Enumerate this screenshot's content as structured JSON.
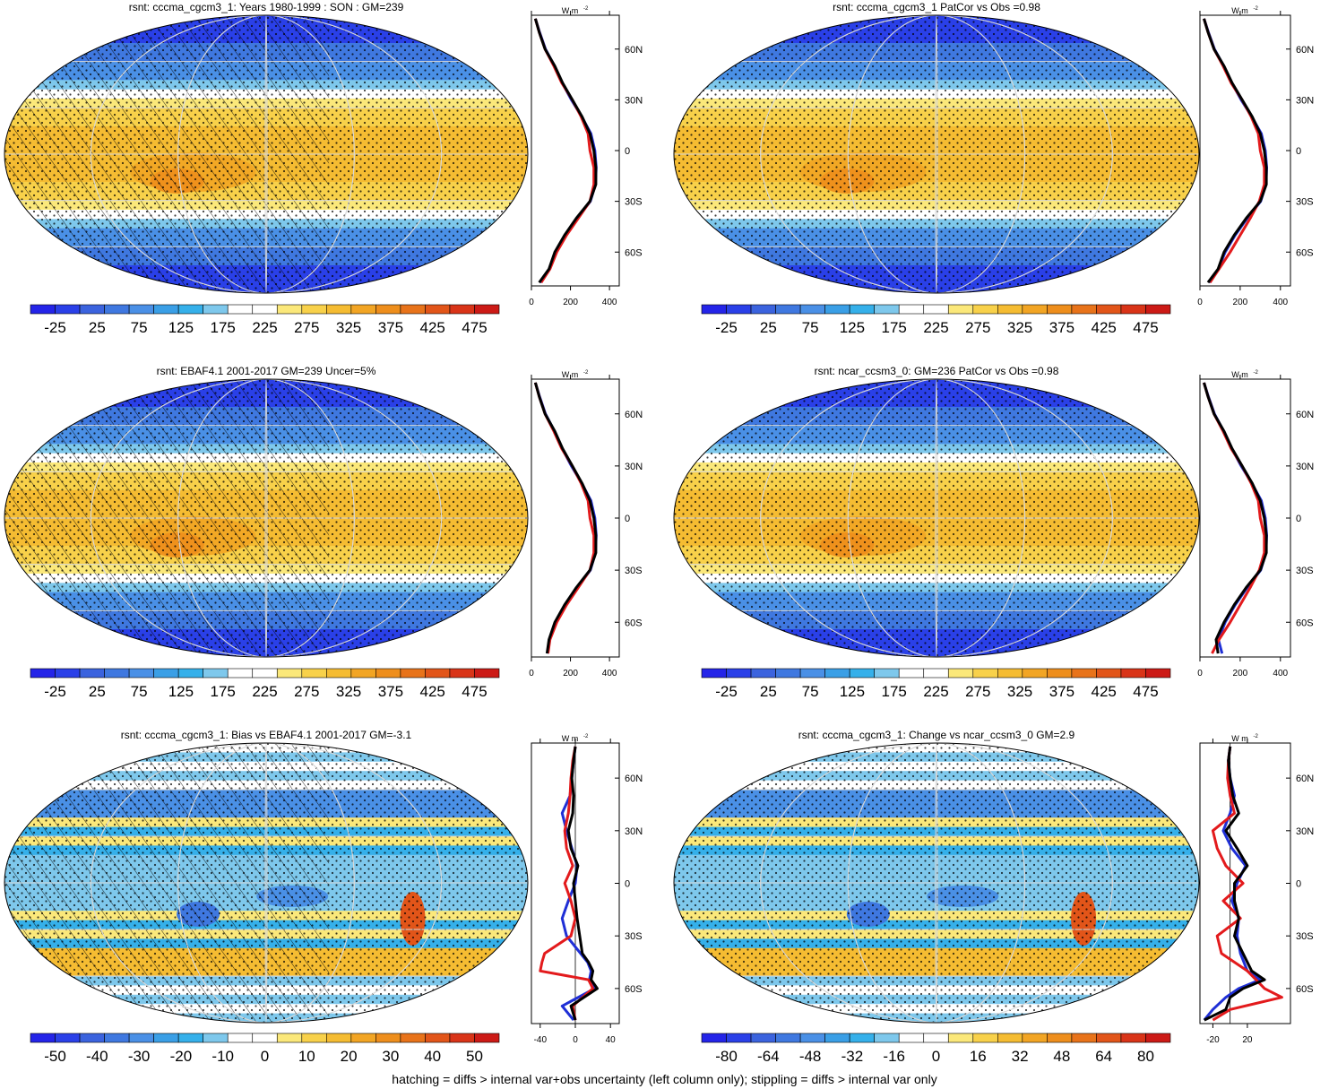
{
  "footer": "hatching = diffs > internal var+obs uncertainty (left column only); stippling = diffs > internal var only",
  "profile_unit": "W m",
  "profile_unit_sup": "-2",
  "lat_ticks": [
    "60N",
    "30N",
    "0",
    "30S",
    "60S"
  ],
  "colors": {
    "abs_scale": [
      "#2424e8",
      "#2a40e8",
      "#3b63de",
      "#3f78e0",
      "#4a90e6",
      "#3a9fe6",
      "#35b0ea",
      "#7ec8ec",
      "#ffffff",
      "#ffffff",
      "#fbe87a",
      "#f8d14a",
      "#f5bc32",
      "#f2a524",
      "#ee8e1c",
      "#e8731a",
      "#e25519",
      "#d93418",
      "#cc1a16"
    ],
    "diff_scale": [
      "#2424e8",
      "#2a40e8",
      "#3b63de",
      "#3f78e0",
      "#4a90e6",
      "#3a9fe6",
      "#35b0ea",
      "#7ec8ec",
      "#ffffff",
      "#ffffff",
      "#fbe87a",
      "#f8d14a",
      "#f5bc32",
      "#f2a524",
      "#ee8e1c",
      "#e8731a",
      "#e25519",
      "#d93418",
      "#cc1a16"
    ],
    "model_line": "#000000",
    "obs_line": "#e31a1c",
    "other_line": "#1f2fd6"
  },
  "chart_data": [
    {
      "type": "heatmap",
      "panel": "top-left",
      "title": "rsnt: cccma_cgcm3_1: Years 1980-1999 : SON : GM=239",
      "field": "abs",
      "hatching": true,
      "stippling": true,
      "colorbar_labels": [
        "-25",
        "25",
        "75",
        "125",
        "175",
        "225",
        "275",
        "325",
        "375",
        "425",
        "475"
      ],
      "profile": {
        "xticks": [
          "0",
          "200",
          "400"
        ],
        "xlim": [
          0,
          450
        ],
        "ylim": [
          -80,
          80
        ],
        "lat": [
          -78,
          -70,
          -60,
          -50,
          -40,
          -30,
          -20,
          -10,
          0,
          10,
          20,
          30,
          40,
          50,
          60,
          70,
          78
        ],
        "model": [
          40,
          90,
          120,
          170,
          230,
          300,
          330,
          330,
          320,
          300,
          260,
          210,
          160,
          120,
          70,
          40,
          20
        ],
        "obs": [
          50,
          95,
          130,
          180,
          240,
          300,
          320,
          320,
          300,
          290,
          255,
          210,
          155,
          115,
          70,
          40,
          20
        ],
        "other": [
          45,
          92,
          125,
          175,
          235,
          302,
          328,
          332,
          325,
          305,
          258,
          205,
          158,
          118,
          72,
          42,
          20
        ]
      }
    },
    {
      "type": "heatmap",
      "panel": "top-right",
      "title": "rsnt: cccma_cgcm3_1 PatCor vs Obs =0.98",
      "field": "abs",
      "hatching": false,
      "stippling": true,
      "colorbar_labels": [
        "-25",
        "25",
        "75",
        "125",
        "175",
        "225",
        "275",
        "325",
        "375",
        "425",
        "475"
      ],
      "profile": {
        "xticks": [
          "0",
          "200",
          "400"
        ],
        "xlim": [
          0,
          450
        ],
        "ylim": [
          -80,
          80
        ],
        "lat": [
          -78,
          -70,
          -60,
          -50,
          -40,
          -30,
          -20,
          -10,
          0,
          10,
          20,
          30,
          40,
          50,
          60,
          70,
          78
        ],
        "model": [
          40,
          90,
          120,
          170,
          230,
          300,
          330,
          330,
          320,
          300,
          260,
          210,
          160,
          120,
          70,
          40,
          20
        ],
        "obs": [
          50,
          95,
          150,
          200,
          250,
          295,
          320,
          320,
          300,
          290,
          255,
          210,
          155,
          115,
          70,
          40,
          20
        ],
        "other": [
          45,
          92,
          125,
          175,
          235,
          302,
          328,
          332,
          325,
          305,
          258,
          205,
          158,
          118,
          72,
          42,
          20
        ]
      }
    },
    {
      "type": "heatmap",
      "panel": "middle-left",
      "title": "rsnt: EBAF4.1 2001-2017 GM=239 Uncer=5%",
      "field": "abs",
      "hatching": true,
      "stippling": true,
      "colorbar_labels": [
        "-25",
        "25",
        "75",
        "125",
        "175",
        "225",
        "275",
        "325",
        "375",
        "425",
        "475"
      ],
      "profile": {
        "xticks": [
          "0",
          "200",
          "400"
        ],
        "xlim": [
          0,
          450
        ],
        "ylim": [
          -80,
          80
        ],
        "lat": [
          -78,
          -70,
          -60,
          -50,
          -40,
          -30,
          -20,
          -10,
          0,
          10,
          20,
          30,
          40,
          50,
          60,
          70,
          78
        ],
        "model": [
          80,
          90,
          120,
          170,
          230,
          300,
          330,
          330,
          320,
          300,
          260,
          210,
          160,
          120,
          70,
          40,
          20
        ],
        "obs": [
          85,
          95,
          130,
          180,
          240,
          300,
          320,
          320,
          300,
          290,
          255,
          210,
          155,
          115,
          70,
          40,
          20
        ],
        "other": [
          82,
          92,
          125,
          175,
          235,
          302,
          328,
          332,
          325,
          305,
          258,
          205,
          158,
          118,
          72,
          42,
          20
        ]
      }
    },
    {
      "type": "heatmap",
      "panel": "middle-right",
      "title": "rsnt: ncar_ccsm3_0: GM=236 PatCor vs Obs =0.98",
      "field": "abs",
      "hatching": false,
      "stippling": true,
      "colorbar_labels": [
        "-25",
        "25",
        "75",
        "125",
        "175",
        "225",
        "275",
        "325",
        "375",
        "425",
        "475"
      ],
      "profile": {
        "xticks": [
          "0",
          "200",
          "400"
        ],
        "xlim": [
          0,
          450
        ],
        "ylim": [
          -80,
          80
        ],
        "lat": [
          -78,
          -70,
          -60,
          -50,
          -40,
          -30,
          -20,
          -10,
          0,
          10,
          20,
          30,
          40,
          50,
          60,
          70,
          78
        ],
        "model": [
          90,
          80,
          120,
          170,
          230,
          300,
          330,
          330,
          320,
          300,
          260,
          210,
          160,
          120,
          70,
          40,
          20
        ],
        "obs": [
          60,
          95,
          150,
          200,
          250,
          295,
          320,
          320,
          300,
          290,
          255,
          210,
          155,
          115,
          70,
          40,
          20
        ],
        "other": [
          110,
          92,
          125,
          175,
          235,
          302,
          328,
          332,
          325,
          305,
          258,
          205,
          158,
          118,
          72,
          42,
          20
        ]
      }
    },
    {
      "type": "heatmap",
      "panel": "bottom-left",
      "title": "rsnt: cccma_cgcm3_1: Bias vs EBAF4.1 2001-2017  GM=-3.1",
      "field": "diff",
      "hatching": true,
      "stippling": true,
      "colorbar_labels": [
        "-50",
        "-40",
        "-30",
        "-20",
        "-10",
        "0",
        "10",
        "20",
        "30",
        "40",
        "50"
      ],
      "profile": {
        "xticks": [
          "-40",
          "0",
          "40"
        ],
        "xlim": [
          -50,
          50
        ],
        "ylim": [
          -80,
          80
        ],
        "lat": [
          -78,
          -70,
          -60,
          -55,
          -50,
          -45,
          -40,
          -30,
          -20,
          -10,
          0,
          10,
          20,
          30,
          40,
          50,
          60,
          70,
          78
        ],
        "model": [
          0,
          -5,
          25,
          18,
          20,
          15,
          8,
          5,
          2,
          0,
          -2,
          3,
          -5,
          -8,
          -3,
          -2,
          -4,
          -2,
          0
        ],
        "obs": [
          0,
          -3,
          20,
          15,
          -40,
          -38,
          -35,
          -5,
          0,
          -5,
          -12,
          -3,
          -10,
          -12,
          -8,
          -6,
          -5,
          -3,
          0
        ],
        "other": [
          -2,
          -15,
          22,
          16,
          18,
          14,
          6,
          -10,
          -15,
          -8,
          0,
          2,
          -4,
          -10,
          -15,
          -6,
          -4,
          -2,
          0
        ]
      }
    },
    {
      "type": "heatmap",
      "panel": "bottom-right",
      "title": "rsnt: cccma_cgcm3_1: Change vs ncar_ccsm3_0 GM=2.9",
      "field": "diff",
      "hatching": false,
      "stippling": true,
      "colorbar_labels": [
        "-80",
        "-64",
        "-48",
        "-32",
        "-16",
        "0",
        "16",
        "32",
        "48",
        "64",
        "80"
      ],
      "profile": {
        "xticks": [
          "-20",
          "20"
        ],
        "xlim": [
          -35,
          70
        ],
        "ylim": [
          -80,
          80
        ],
        "lat": [
          -78,
          -72,
          -65,
          -60,
          -55,
          -50,
          -40,
          -30,
          -20,
          -10,
          0,
          10,
          20,
          30,
          40,
          50,
          60,
          70,
          78
        ],
        "model": [
          -30,
          -5,
          0,
          15,
          40,
          25,
          15,
          5,
          10,
          5,
          5,
          20,
          8,
          -5,
          10,
          3,
          0,
          -2,
          0
        ],
        "obs": [
          -20,
          0,
          60,
          40,
          30,
          20,
          -10,
          -15,
          12,
          -8,
          15,
          -5,
          -15,
          -20,
          5,
          0,
          -3,
          -2,
          0
        ],
        "other": [
          -30,
          -20,
          -5,
          10,
          35,
          20,
          12,
          8,
          10,
          2,
          8,
          18,
          2,
          -8,
          0,
          5,
          0,
          -2,
          0
        ]
      }
    }
  ]
}
